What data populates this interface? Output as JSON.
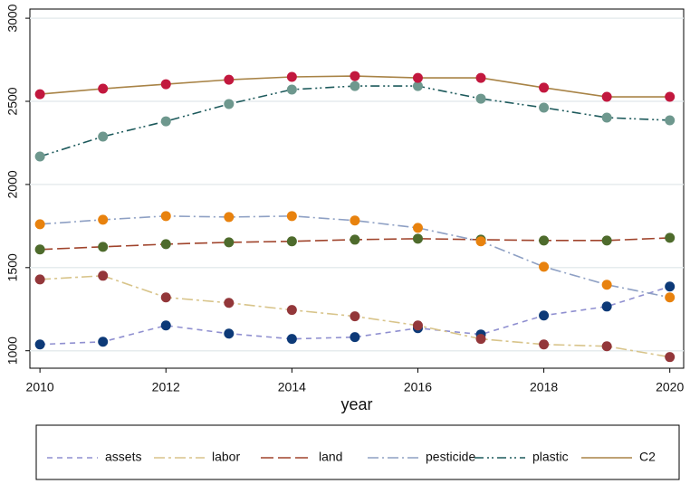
{
  "chart_data": {
    "type": "line",
    "x": [
      2010,
      2011,
      2012,
      2013,
      2014,
      2015,
      2016,
      2017,
      2018,
      2019,
      2020
    ],
    "x_label": "year",
    "xlim": [
      2009.84,
      2020.22
    ],
    "xticks": [
      2010,
      2012,
      2014,
      2016,
      2018,
      2020
    ],
    "ylim": [
      895,
      3055
    ],
    "yticks": [
      1000,
      1500,
      2000,
      2500,
      3000
    ],
    "grid": true,
    "series": [
      {
        "name": "assets",
        "color": "#8f8fd0",
        "marker_color": "#0d3a78",
        "values": [
          1038,
          1054,
          1152,
          1103,
          1071,
          1082,
          1136,
          1098,
          1212,
          1266,
          1386
        ]
      },
      {
        "name": "labor",
        "color": "#d8c48a",
        "marker_color": "#93373a",
        "values": [
          1429,
          1451,
          1321,
          1288,
          1245,
          1207,
          1152,
          1071,
          1038,
          1027,
          962
        ]
      },
      {
        "name": "land",
        "color": "#a0442c",
        "marker_color": "#4e6b2c",
        "values": [
          1609,
          1625,
          1641,
          1652,
          1658,
          1668,
          1674,
          1668,
          1663,
          1663,
          1679
        ]
      },
      {
        "name": "pesticide",
        "color": "#8ea0c4",
        "marker_color": "#e8820e",
        "values": [
          1761,
          1788,
          1810,
          1804,
          1810,
          1783,
          1739,
          1658,
          1505,
          1397,
          1321
        ]
      },
      {
        "name": "plastic",
        "color": "#1d5a5c",
        "marker_color": "#6e988e",
        "values": [
          2168,
          2288,
          2380,
          2484,
          2571,
          2592,
          2592,
          2516,
          2462,
          2402,
          2386
        ]
      },
      {
        "name": "C2",
        "color": "#a88346",
        "marker_color": "#c2183e",
        "values": [
          2543,
          2576,
          2603,
          2630,
          2647,
          2652,
          2641,
          2641,
          2582,
          2527,
          2527
        ]
      }
    ]
  }
}
